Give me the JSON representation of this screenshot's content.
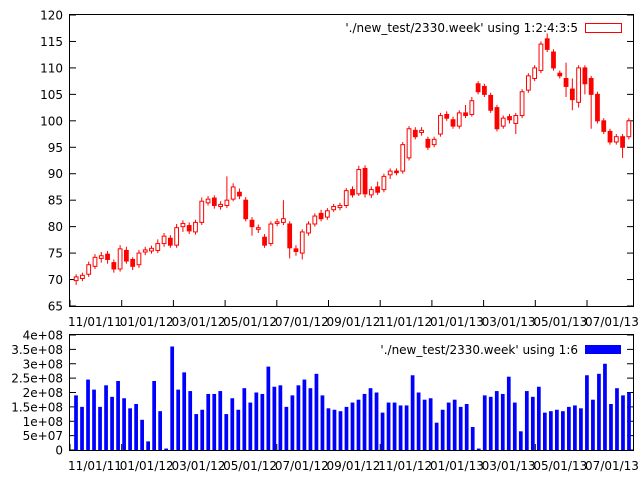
{
  "chart_data": [
    {
      "type": "candlestick",
      "title": "",
      "series_label": "'./new_test/2330.week' using 1:2:4:3:5",
      "legend_position": "top-right",
      "ylim": [
        65,
        120
      ],
      "yticks": [
        65,
        70,
        75,
        80,
        85,
        90,
        95,
        100,
        105,
        110,
        115,
        120
      ],
      "xtick_labels": [
        "11/01/11",
        "01/01/12",
        "03/01/12",
        "05/01/12",
        "07/01/12",
        "09/01/12",
        "11/01/12",
        "01/01/13",
        "03/01/13",
        "05/01/13",
        "07/01/13"
      ],
      "up_color": "#ffffff",
      "down_color": "#ff0000",
      "stroke_color": "#ff0000",
      "candles": [
        {
          "o": 69.8,
          "c": 70.5,
          "h": 71.0,
          "l": 69.0
        },
        {
          "o": 70.2,
          "c": 70.8,
          "h": 71.3,
          "l": 69.7
        },
        {
          "o": 71.0,
          "c": 72.8,
          "h": 73.4,
          "l": 70.5
        },
        {
          "o": 72.5,
          "c": 74.2,
          "h": 74.8,
          "l": 72.0
        },
        {
          "o": 74.0,
          "c": 74.5,
          "h": 75.2,
          "l": 73.2
        },
        {
          "o": 74.8,
          "c": 73.8,
          "h": 75.4,
          "l": 73.0
        },
        {
          "o": 73.2,
          "c": 72.0,
          "h": 73.8,
          "l": 71.3
        },
        {
          "o": 72.0,
          "c": 75.8,
          "h": 76.5,
          "l": 71.5
        },
        {
          "o": 75.5,
          "c": 73.5,
          "h": 76.2,
          "l": 73.0
        },
        {
          "o": 73.8,
          "c": 72.5,
          "h": 74.2,
          "l": 71.8
        },
        {
          "o": 72.8,
          "c": 75.0,
          "h": 75.6,
          "l": 72.2
        },
        {
          "o": 75.2,
          "c": 75.6,
          "h": 76.2,
          "l": 74.6
        },
        {
          "o": 75.4,
          "c": 75.9,
          "h": 76.4,
          "l": 74.9
        },
        {
          "o": 75.5,
          "c": 76.8,
          "h": 77.6,
          "l": 75.0
        },
        {
          "o": 76.8,
          "c": 78.2,
          "h": 78.8,
          "l": 76.2
        },
        {
          "o": 77.8,
          "c": 76.5,
          "h": 78.4,
          "l": 76.0
        },
        {
          "o": 76.5,
          "c": 79.8,
          "h": 80.5,
          "l": 76.0
        },
        {
          "o": 80.0,
          "c": 80.6,
          "h": 81.2,
          "l": 79.0
        },
        {
          "o": 80.2,
          "c": 79.2,
          "h": 80.8,
          "l": 78.6
        },
        {
          "o": 79.0,
          "c": 80.8,
          "h": 81.3,
          "l": 78.5
        },
        {
          "o": 80.8,
          "c": 84.8,
          "h": 85.5,
          "l": 80.3
        },
        {
          "o": 84.5,
          "c": 85.2,
          "h": 85.8,
          "l": 84.0
        },
        {
          "o": 85.4,
          "c": 84.0,
          "h": 85.9,
          "l": 83.4
        },
        {
          "o": 83.8,
          "c": 84.2,
          "h": 84.8,
          "l": 83.2
        },
        {
          "o": 84.0,
          "c": 85.0,
          "h": 89.5,
          "l": 83.5
        },
        {
          "o": 85.2,
          "c": 87.5,
          "h": 88.2,
          "l": 84.8
        },
        {
          "o": 86.5,
          "c": 85.8,
          "h": 87.2,
          "l": 85.2
        },
        {
          "o": 85.0,
          "c": 81.5,
          "h": 85.6,
          "l": 81.0
        },
        {
          "o": 81.2,
          "c": 80.0,
          "h": 81.8,
          "l": 78.3
        },
        {
          "o": 79.5,
          "c": 79.8,
          "h": 80.4,
          "l": 78.8
        },
        {
          "o": 78.0,
          "c": 76.5,
          "h": 78.6,
          "l": 76.0
        },
        {
          "o": 76.8,
          "c": 80.5,
          "h": 81.0,
          "l": 76.3
        },
        {
          "o": 80.6,
          "c": 80.9,
          "h": 81.5,
          "l": 80.1
        },
        {
          "o": 80.8,
          "c": 81.5,
          "h": 85.0,
          "l": 80.3
        },
        {
          "o": 80.5,
          "c": 76.0,
          "h": 81.0,
          "l": 74.0
        },
        {
          "o": 75.8,
          "c": 75.3,
          "h": 76.5,
          "l": 74.5
        },
        {
          "o": 75.0,
          "c": 79.0,
          "h": 79.5,
          "l": 73.8
        },
        {
          "o": 78.8,
          "c": 80.5,
          "h": 81.0,
          "l": 78.3
        },
        {
          "o": 80.5,
          "c": 82.0,
          "h": 82.5,
          "l": 80.0
        },
        {
          "o": 82.5,
          "c": 81.5,
          "h": 83.2,
          "l": 81.0
        },
        {
          "o": 81.8,
          "c": 83.0,
          "h": 83.5,
          "l": 81.3
        },
        {
          "o": 83.2,
          "c": 83.8,
          "h": 84.3,
          "l": 82.8
        },
        {
          "o": 83.6,
          "c": 84.0,
          "h": 84.5,
          "l": 83.1
        },
        {
          "o": 84.0,
          "c": 86.8,
          "h": 87.3,
          "l": 83.5
        },
        {
          "o": 87.0,
          "c": 86.0,
          "h": 87.6,
          "l": 85.5
        },
        {
          "o": 86.2,
          "c": 90.8,
          "h": 91.5,
          "l": 85.8
        },
        {
          "o": 91.0,
          "c": 86.2,
          "h": 91.6,
          "l": 85.5
        },
        {
          "o": 86.0,
          "c": 87.0,
          "h": 87.6,
          "l": 85.4
        },
        {
          "o": 87.5,
          "c": 86.5,
          "h": 88.5,
          "l": 86.0
        },
        {
          "o": 87.0,
          "c": 89.5,
          "h": 90.0,
          "l": 86.5
        },
        {
          "o": 89.8,
          "c": 90.5,
          "h": 91.0,
          "l": 89.0
        },
        {
          "o": 90.5,
          "c": 90.2,
          "h": 91.0,
          "l": 89.7
        },
        {
          "o": 90.5,
          "c": 95.5,
          "h": 96.0,
          "l": 90.0
        },
        {
          "o": 93.0,
          "c": 98.5,
          "h": 99.0,
          "l": 92.5
        },
        {
          "o": 98.2,
          "c": 97.0,
          "h": 98.8,
          "l": 96.5
        },
        {
          "o": 97.8,
          "c": 98.2,
          "h": 98.8,
          "l": 97.2
        },
        {
          "o": 96.5,
          "c": 95.0,
          "h": 97.0,
          "l": 94.5
        },
        {
          "o": 95.5,
          "c": 96.5,
          "h": 97.0,
          "l": 95.0
        },
        {
          "o": 97.5,
          "c": 101.0,
          "h": 101.5,
          "l": 97.0
        },
        {
          "o": 101.2,
          "c": 100.5,
          "h": 101.8,
          "l": 100.0
        },
        {
          "o": 100.2,
          "c": 99.0,
          "h": 100.8,
          "l": 98.5
        },
        {
          "o": 99.0,
          "c": 101.5,
          "h": 102.0,
          "l": 98.5
        },
        {
          "o": 101.5,
          "c": 101.0,
          "h": 103.0,
          "l": 100.5
        },
        {
          "o": 101.2,
          "c": 103.8,
          "h": 104.5,
          "l": 100.8
        },
        {
          "o": 107.0,
          "c": 105.5,
          "h": 107.5,
          "l": 105.0
        },
        {
          "o": 106.5,
          "c": 105.0,
          "h": 107.0,
          "l": 104.5
        },
        {
          "o": 104.8,
          "c": 102.0,
          "h": 105.3,
          "l": 101.5
        },
        {
          "o": 102.5,
          "c": 98.5,
          "h": 103.0,
          "l": 98.0
        },
        {
          "o": 99.0,
          "c": 100.5,
          "h": 101.0,
          "l": 98.5
        },
        {
          "o": 100.8,
          "c": 100.2,
          "h": 101.3,
          "l": 99.5
        },
        {
          "o": 99.5,
          "c": 101.0,
          "h": 101.5,
          "l": 97.5
        },
        {
          "o": 101.0,
          "c": 105.5,
          "h": 106.0,
          "l": 100.5
        },
        {
          "o": 105.8,
          "c": 108.5,
          "h": 109.0,
          "l": 105.3
        },
        {
          "o": 108.0,
          "c": 110.0,
          "h": 110.5,
          "l": 107.5
        },
        {
          "o": 109.5,
          "c": 114.5,
          "h": 115.0,
          "l": 109.0
        },
        {
          "o": 115.5,
          "c": 113.5,
          "h": 116.5,
          "l": 113.0
        },
        {
          "o": 113.0,
          "c": 110.0,
          "h": 113.5,
          "l": 109.5
        },
        {
          "o": 109.0,
          "c": 108.5,
          "h": 109.5,
          "l": 108.0
        },
        {
          "o": 108.0,
          "c": 106.5,
          "h": 111.0,
          "l": 104.5
        },
        {
          "o": 106.0,
          "c": 104.0,
          "h": 108.0,
          "l": 102.0
        },
        {
          "o": 103.5,
          "c": 110.0,
          "h": 110.5,
          "l": 102.5
        },
        {
          "o": 110.0,
          "c": 107.0,
          "h": 110.5,
          "l": 105.0
        },
        {
          "o": 108.0,
          "c": 105.0,
          "h": 108.5,
          "l": 98.5
        },
        {
          "o": 105.0,
          "c": 100.0,
          "h": 105.5,
          "l": 99.5
        },
        {
          "o": 100.0,
          "c": 98.0,
          "h": 100.5,
          "l": 97.5
        },
        {
          "o": 98.0,
          "c": 96.0,
          "h": 98.5,
          "l": 95.5
        },
        {
          "o": 96.0,
          "c": 97.0,
          "h": 97.5,
          "l": 95.5
        },
        {
          "o": 97.0,
          "c": 95.0,
          "h": 97.5,
          "l": 93.0
        },
        {
          "o": 97.0,
          "c": 100.0,
          "h": 100.5,
          "l": 96.5
        }
      ]
    },
    {
      "type": "bar",
      "title": "",
      "series_label": "'./new_test/2330.week' using 1:6",
      "legend_position": "top-right",
      "ylim": [
        0,
        400000000
      ],
      "ytick_labels": [
        "0",
        "5e+07",
        "1e+08",
        "1.5e+08",
        "2e+08",
        "2.5e+08",
        "3e+08",
        "3.5e+08",
        "4e+08"
      ],
      "xtick_labels": [
        "11/01/11",
        "01/01/12",
        "03/01/12",
        "05/01/12",
        "07/01/12",
        "09/01/12",
        "11/01/12",
        "01/01/13",
        "03/01/13",
        "05/01/13",
        "07/01/13"
      ],
      "bar_color": "#0000ff",
      "values": [
        190000000,
        150000000,
        245000000,
        210000000,
        150000000,
        225000000,
        185000000,
        240000000,
        180000000,
        145000000,
        160000000,
        105000000,
        30000000,
        240000000,
        135000000,
        5000000,
        360000000,
        210000000,
        270000000,
        205000000,
        125000000,
        140000000,
        195000000,
        195000000,
        205000000,
        125000000,
        180000000,
        140000000,
        215000000,
        165000000,
        200000000,
        195000000,
        290000000,
        220000000,
        225000000,
        150000000,
        190000000,
        225000000,
        245000000,
        215000000,
        265000000,
        190000000,
        145000000,
        140000000,
        135000000,
        150000000,
        165000000,
        175000000,
        195000000,
        215000000,
        200000000,
        130000000,
        165000000,
        165000000,
        155000000,
        155000000,
        260000000,
        200000000,
        175000000,
        180000000,
        95000000,
        140000000,
        165000000,
        175000000,
        150000000,
        160000000,
        80000000,
        5000000,
        190000000,
        185000000,
        205000000,
        195000000,
        255000000,
        165000000,
        65000000,
        205000000,
        185000000,
        220000000,
        130000000,
        135000000,
        140000000,
        135000000,
        150000000,
        155000000,
        145000000,
        260000000,
        175000000,
        265000000,
        300000000,
        160000000,
        215000000,
        190000000,
        200000000
      ]
    }
  ]
}
